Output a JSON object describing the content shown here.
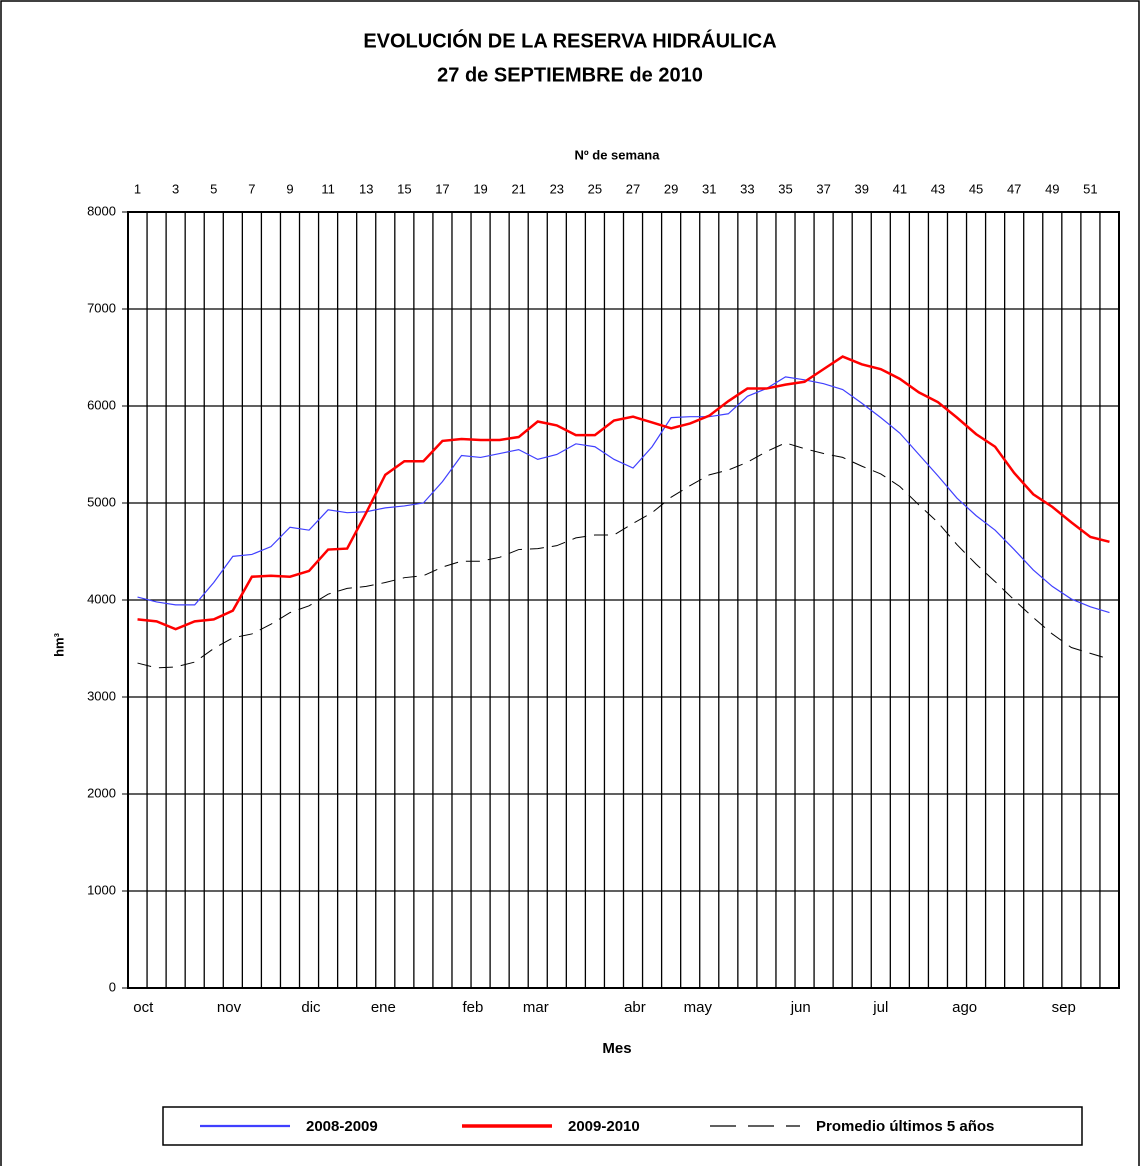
{
  "chart_data": {
    "type": "line",
    "title": "EVOLUCIÓN DE LA RESERVA HIDRÁULICA",
    "subtitle": "27 de SEPTIEMBRE de 2010",
    "x_top_label": "Nº de semana",
    "x_label": "Mes",
    "y_label": "hm³",
    "x": [
      1,
      2,
      3,
      4,
      5,
      6,
      7,
      8,
      9,
      10,
      11,
      12,
      13,
      14,
      15,
      16,
      17,
      18,
      19,
      20,
      21,
      22,
      23,
      24,
      25,
      26,
      27,
      28,
      29,
      30,
      31,
      32,
      33,
      34,
      35,
      36,
      37,
      38,
      39,
      40,
      41,
      42,
      43,
      44,
      45,
      46,
      47,
      48,
      49,
      50,
      51,
      52
    ],
    "xlim": [
      0.5,
      52.5
    ],
    "xticks": [
      1,
      3,
      5,
      7,
      9,
      11,
      13,
      15,
      17,
      19,
      21,
      23,
      25,
      27,
      29,
      31,
      33,
      35,
      37,
      39,
      41,
      43,
      45,
      47,
      49,
      51
    ],
    "month_ticks": [
      {
        "value": 1.3,
        "label": "oct"
      },
      {
        "value": 5.8,
        "label": "nov"
      },
      {
        "value": 10.1,
        "label": "dic"
      },
      {
        "value": 13.9,
        "label": "ene"
      },
      {
        "value": 18.6,
        "label": "feb"
      },
      {
        "value": 21.9,
        "label": "mar"
      },
      {
        "value": 27.1,
        "label": "abr"
      },
      {
        "value": 30.4,
        "label": "may"
      },
      {
        "value": 35.8,
        "label": "jun"
      },
      {
        "value": 40.0,
        "label": "jul"
      },
      {
        "value": 44.4,
        "label": "ago"
      },
      {
        "value": 49.6,
        "label": "sep"
      }
    ],
    "ylim": [
      0,
      8000
    ],
    "yticks": [
      0,
      1000,
      2000,
      3000,
      4000,
      5000,
      6000,
      7000,
      8000
    ],
    "grid": true,
    "legend": "bottom",
    "series": [
      {
        "name": "2008-2009",
        "color": "#4040ff",
        "line_width": 1.2,
        "dashed": false,
        "values": [
          4030,
          3980,
          3950,
          3950,
          4180,
          4450,
          4470,
          4550,
          4750,
          4720,
          4930,
          4900,
          4910,
          4950,
          4970,
          5000,
          5220,
          5490,
          5470,
          5510,
          5550,
          5450,
          5500,
          5610,
          5580,
          5450,
          5360,
          5580,
          5880,
          5890,
          5890,
          5920,
          6100,
          6180,
          6300,
          6270,
          6230,
          6170,
          6030,
          5880,
          5720,
          5500,
          5280,
          5050,
          4870,
          4720,
          4520,
          4310,
          4140,
          4010,
          3930,
          3870
        ]
      },
      {
        "name": "2009-2010",
        "color": "#ff0000",
        "line_width": 2.5,
        "dashed": false,
        "values": [
          3800,
          3780,
          3700,
          3780,
          3800,
          3890,
          4240,
          4250,
          4240,
          4300,
          4520,
          4530,
          4900,
          5290,
          5430,
          5430,
          5640,
          5660,
          5650,
          5650,
          5680,
          5840,
          5800,
          5700,
          5700,
          5850,
          5890,
          5830,
          5770,
          5820,
          5900,
          6050,
          6180,
          6180,
          6220,
          6250,
          6380,
          6510,
          6430,
          6380,
          6280,
          6140,
          6040,
          5880,
          5710,
          5580,
          5310,
          5090,
          4960,
          4800,
          4650,
          4600
        ]
      },
      {
        "name": "Promedio últimos 5 años",
        "color": "#000000",
        "line_width": 1,
        "dashed": true,
        "values": [
          3350,
          3300,
          3310,
          3360,
          3500,
          3610,
          3650,
          3750,
          3870,
          3940,
          4060,
          4120,
          4140,
          4180,
          4230,
          4250,
          4340,
          4400,
          4400,
          4440,
          4520,
          4530,
          4560,
          4640,
          4670,
          4670,
          4790,
          4900,
          5060,
          5180,
          5290,
          5340,
          5420,
          5530,
          5620,
          5560,
          5510,
          5470,
          5380,
          5300,
          5170,
          4980,
          4800,
          4570,
          4370,
          4190,
          4000,
          3820,
          3650,
          3510,
          3450,
          3390
        ]
      }
    ]
  }
}
